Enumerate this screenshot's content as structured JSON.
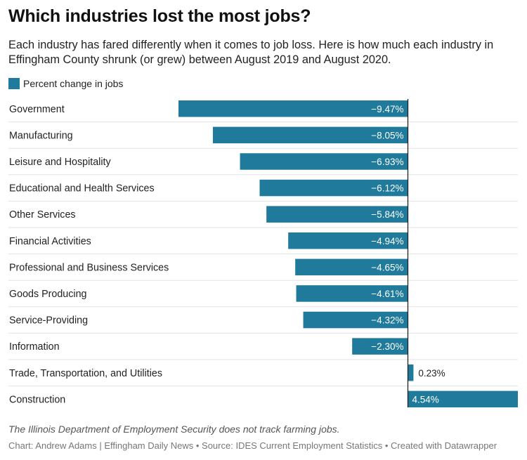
{
  "title": "Which industries lost the most jobs?",
  "subtitle": "Each industry has fared differently when it comes to job loss. Here is how much each industry in Effingham County shrunk (or grew) between August 2019 and August 2020.",
  "legend_label": "Percent change in jobs",
  "note": "The Illinois Department of Employment Security does not track farming jobs.",
  "credits": "Chart: Andrew Adams | Effingham Daily News • Source: IDES Current Employment Statistics • Created with Datawrapper",
  "colors": {
    "bar": "#1f7a9c",
    "label_inside": "#ffffff",
    "label_outside": "#222222",
    "separator": "#e3e3e3",
    "zero_line": "#222222"
  },
  "chart_data": {
    "type": "bar",
    "orientation": "horizontal",
    "categories": [
      "Government",
      "Manufacturing",
      "Leisure and Hospitality",
      "Educational and Health Services",
      "Other Services",
      "Financial Activities",
      "Professional and Business Services",
      "Goods Producing",
      "Service-Providing",
      "Information",
      "Trade, Transportation, and Utilities",
      "Construction"
    ],
    "series": [
      {
        "name": "Percent change in jobs",
        "values": [
          -9.47,
          -8.05,
          -6.93,
          -6.12,
          -5.84,
          -4.94,
          -4.65,
          -4.61,
          -4.32,
          -2.3,
          0.23,
          4.54
        ]
      }
    ],
    "value_labels": [
      "−9.47%",
      "−8.05%",
      "−6.93%",
      "−6.12%",
      "−5.84%",
      "−4.94%",
      "−4.65%",
      "−4.61%",
      "−4.32%",
      "−2.30%",
      "0.23%",
      "4.54%"
    ],
    "xlim": [
      -9.47,
      4.54
    ],
    "legend": "top-left",
    "grid": false
  }
}
